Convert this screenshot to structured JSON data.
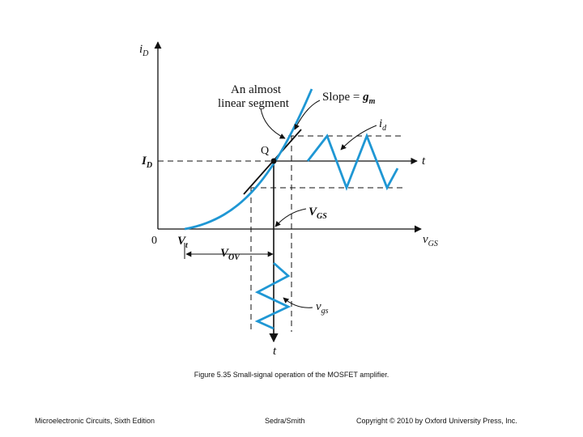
{
  "figure": {
    "axis_y_label": "i",
    "axis_y_sub": "D",
    "axis_x_label": "v",
    "axis_x_sub": "GS",
    "origin_label": "0",
    "vt_label": "V",
    "vt_sub": "t",
    "id_label": "I",
    "id_sub": "D",
    "q_label": "Q",
    "annotation_line1": "An almost",
    "annotation_line2": "linear segment",
    "slope_text": "Slope = ",
    "slope_var": "g",
    "slope_sub": "m",
    "id_signal": "i",
    "id_signal_sub": "d",
    "t_label_right": "t",
    "t_label_bottom": "t",
    "vgs_label": "V",
    "vgs_sub": "GS",
    "vov_label": "V",
    "vov_sub": "OV",
    "vgs_signal": "v",
    "vgs_signal_sub": "gs",
    "curve_color": "#1f97d4"
  },
  "caption": "Figure 5.35 Small-signal operation of the MOSFET amplifier.",
  "footer": {
    "book": "Microelectronic Circuits, Sixth Edition",
    "authors": "Sedra/Smith",
    "copyright": "Copyright © 2010 by Oxford University Press, Inc."
  }
}
